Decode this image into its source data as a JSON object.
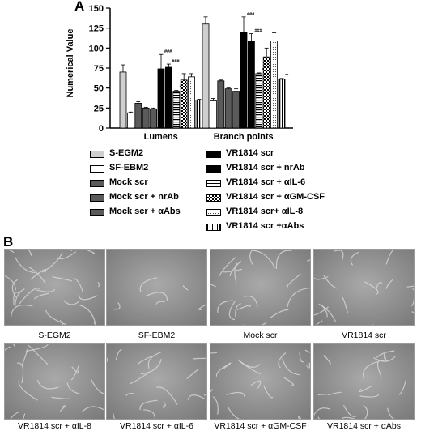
{
  "panel_a_label": "A",
  "panel_b_label": "B",
  "chart_data": {
    "type": "bar",
    "ylabel": "Numerical Value",
    "xlabel": "",
    "ylim": [
      0,
      150
    ],
    "yticks": [
      "0",
      "25",
      "50",
      "75",
      "100",
      "125",
      "150"
    ],
    "categories": [
      "Lumens",
      "Branch points"
    ],
    "series": [
      {
        "name": "S-EGM2",
        "values": [
          70,
          130
        ],
        "errors": [
          9,
          9
        ],
        "stars": [
          "",
          ""
        ]
      },
      {
        "name": "SF-EBM2",
        "values": [
          19,
          34
        ],
        "errors": [
          1,
          3
        ],
        "stars": [
          "",
          ""
        ]
      },
      {
        "name": "Mock scr",
        "values": [
          31,
          59
        ],
        "errors": [
          2,
          1
        ],
        "stars": [
          "",
          ""
        ]
      },
      {
        "name": "Mock scr + nrAb",
        "values": [
          25,
          49
        ],
        "errors": [
          1,
          1
        ],
        "stars": [
          "",
          ""
        ]
      },
      {
        "name": "Mock scr + αAbs",
        "values": [
          24,
          46
        ],
        "errors": [
          1,
          3
        ],
        "stars": [
          "",
          ""
        ]
      },
      {
        "name": "VR1814 scr",
        "values": [
          74,
          120
        ],
        "errors": [
          18,
          19
        ],
        "stars": [
          "###",
          "###"
        ]
      },
      {
        "name": "VR1814 scr + nrAb",
        "values": [
          76,
          109
        ],
        "errors": [
          4,
          9
        ],
        "stars": [
          "###",
          "###"
        ]
      },
      {
        "name": "VR1814 scr + αIL-6",
        "values": [
          46,
          68
        ],
        "errors": [
          1,
          1
        ],
        "stars": [
          "**",
          "**"
        ]
      },
      {
        "name": "VR1814 scr + αGM-CSF",
        "values": [
          60,
          89
        ],
        "errors": [
          8,
          11
        ],
        "stars": [
          "",
          ""
        ]
      },
      {
        "name": "VR1814 scr+ αIL-8",
        "values": [
          64,
          109
        ],
        "errors": [
          4,
          10
        ],
        "stars": [
          "",
          ""
        ]
      },
      {
        "name": "VR1814 scr +αAbs",
        "values": [
          35,
          61
        ],
        "errors": [
          1,
          1
        ],
        "stars": [
          "**",
          "**"
        ]
      }
    ],
    "legend_position": "bottom",
    "grid": false
  },
  "colors": {
    "light_gray": "#cfcfcf",
    "dark_gray": "#5a5a5a",
    "black": "#000000",
    "white": "#ffffff"
  },
  "fills": [
    "light",
    "white",
    "dark",
    "dark",
    "dark",
    "black",
    "black",
    "hstripe",
    "check",
    "dots",
    "vstripe"
  ],
  "images": [
    {
      "caption": "S-EGM2"
    },
    {
      "caption": "SF-EBM2"
    },
    {
      "caption": "Mock scr"
    },
    {
      "caption": "VR1814 scr"
    },
    {
      "caption": "VR1814 scr + αIL-8"
    },
    {
      "caption": "VR1814 scr + αIL-6"
    },
    {
      "caption": "VR1814 scr + αGM-CSF"
    },
    {
      "caption": "VR1814 scr + αAbs"
    }
  ]
}
